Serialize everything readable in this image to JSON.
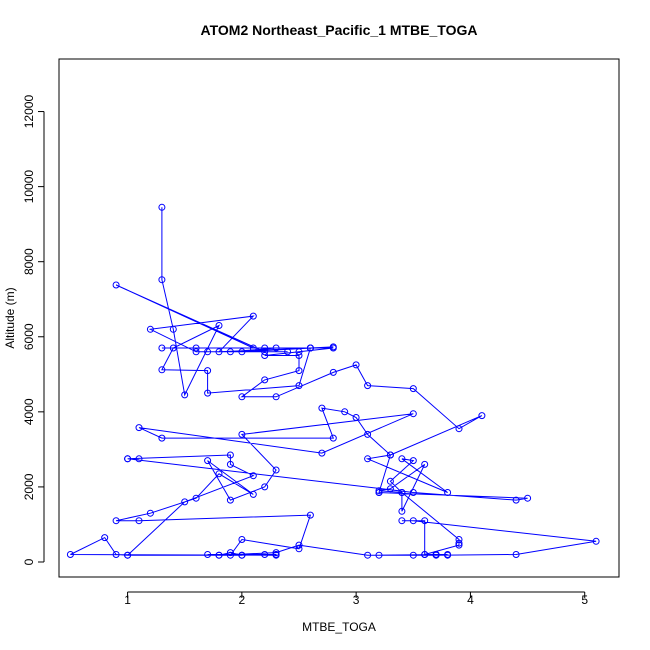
{
  "chart_data": {
    "type": "line",
    "title": "ATOM2 Northeast_Pacific_1 MTBE_TOGA",
    "xlabel": "MTBE_TOGA",
    "ylabel": "Altitude (m)",
    "xlim": [
      0.4,
      5.3
    ],
    "ylim": [
      -400,
      13400
    ],
    "x_ticks": [
      1,
      2,
      3,
      4,
      5
    ],
    "y_ticks": [
      0,
      2000,
      4000,
      6000,
      8000,
      10000,
      12000
    ],
    "grid": false,
    "legend": "none",
    "marker": "open-circle",
    "color": "#0000ff",
    "series": [
      {
        "x": [
          1.3,
          1.3,
          1.4,
          1.5,
          1.8,
          1.4,
          1.3,
          1.7,
          1.7,
          2.5,
          2.6,
          1.8,
          2.1,
          1.2,
          1.6,
          1.7,
          2.4,
          2.2,
          0.9,
          2.1,
          1.6,
          1.3,
          2.2,
          2.6,
          2.8,
          2.0,
          1.9,
          2.3,
          2.6,
          2.8,
          2.5,
          2.2,
          2.5,
          2.5,
          2.2,
          2.0,
          2.3,
          2.8,
          3.0,
          3.1,
          3.5,
          3.9,
          4.1,
          3.3,
          3.1,
          3.0,
          2.9,
          2.7,
          2.8,
          1.3,
          1.1,
          2.7,
          3.5,
          2.0,
          2.3,
          2.2,
          1.9,
          1.7,
          2.1,
          1.8,
          1.6,
          1.2,
          0.9,
          1.1,
          2.6,
          2.5,
          2.0,
          1.9,
          2.0,
          1.0,
          1.5,
          2.1,
          1.9,
          1.9,
          1.0,
          1.1,
          1.0,
          3.5,
          4.4,
          4.5,
          3.2,
          3.2,
          3.3,
          3.1,
          3.8,
          3.4,
          3.5,
          3.3,
          3.4,
          3.2,
          3.3,
          3.6,
          3.4,
          3.4,
          3.9,
          3.9,
          3.9,
          3.6,
          3.7,
          3.8,
          3.2,
          3.5,
          3.7,
          4.4,
          5.1,
          3.5,
          3.4,
          3.6,
          3.6,
          3.7,
          3.8,
          3.1,
          2.5,
          2.3,
          1.8,
          1.9,
          2.0,
          1.8,
          1.7,
          2.3,
          2.2,
          2.3,
          2.3,
          0.5,
          0.8,
          0.9,
          1.0
        ],
        "y": [
          9450,
          7520,
          6200,
          4450,
          6300,
          5700,
          5120,
          5100,
          4500,
          4700,
          5700,
          5600,
          6550,
          6200,
          5600,
          5600,
          5600,
          5600,
          7380,
          5700,
          5700,
          5700,
          5700,
          5700,
          5730,
          5600,
          5600,
          5700,
          5700,
          5700,
          5600,
          5500,
          5500,
          5100,
          4850,
          4400,
          4400,
          5050,
          5250,
          4700,
          4620,
          3550,
          3900,
          2850,
          3400,
          3850,
          4000,
          4100,
          3300,
          3300,
          3580,
          2900,
          3950,
          3400,
          2450,
          2000,
          1650,
          2700,
          1800,
          2350,
          1700,
          1300,
          1100,
          1100,
          1250,
          350,
          600,
          180,
          180,
          180,
          1600,
          2300,
          2600,
          2850,
          2750,
          2750,
          2750,
          1850,
          1650,
          1700,
          1850,
          1850,
          2850,
          2750,
          1850,
          2750,
          2700,
          2150,
          1850,
          1900,
          1950,
          2600,
          1350,
          1850,
          600,
          500,
          450,
          200,
          200,
          200,
          180,
          180,
          180,
          200,
          550,
          1100,
          1100,
          1100,
          200,
          200,
          180,
          180,
          450,
          250,
          180,
          250,
          180,
          180,
          200,
          200,
          200,
          200,
          180,
          200,
          650,
          200,
          180
        ]
      }
    ]
  }
}
